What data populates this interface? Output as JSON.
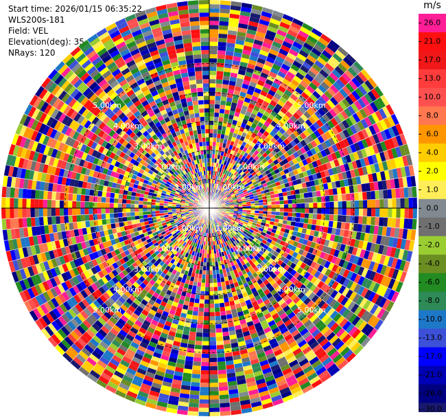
{
  "header": {
    "lines": [
      "Start time: 2026/01/15 06:35:22",
      "WLS200s-181",
      "Field: VEL",
      "Elevation(deg): 35.00",
      "NRays: 120"
    ]
  },
  "colorbar": {
    "unit": "m/s",
    "levels": [
      {
        "label": "26.0",
        "color": "#ff1e96"
      },
      {
        "label": "21.0",
        "color": "#ff1010"
      },
      {
        "label": "17.0",
        "color": "#f01818"
      },
      {
        "label": "13.0",
        "color": "#ff3c3c"
      },
      {
        "label": "10.0",
        "color": "#ff5050"
      },
      {
        "label": "8.0",
        "color": "#ff7850"
      },
      {
        "label": "6.0",
        "color": "#ff9600"
      },
      {
        "label": "4.0",
        "color": "#ffcc00"
      },
      {
        "label": "2.0",
        "color": "#ffff00"
      },
      {
        "label": "1.0",
        "color": "#ffee58"
      },
      {
        "label": "0.0",
        "color": "#808a90"
      },
      {
        "label": "-1.0",
        "color": "#707070"
      },
      {
        "label": "-2.0",
        "color": "#9acd32"
      },
      {
        "label": "-4.0",
        "color": "#6b8e23"
      },
      {
        "label": "-6.0",
        "color": "#228b22"
      },
      {
        "label": "-8.0",
        "color": "#2e8b57"
      },
      {
        "label": "-10.0",
        "color": "#1e78c8"
      },
      {
        "label": "-13.0",
        "color": "#3c50d8"
      },
      {
        "label": "-17.0",
        "color": "#0000ff"
      },
      {
        "label": "-21.0",
        "color": "#0000b4"
      },
      {
        "label": "-26.0",
        "color": "#000080"
      },
      {
        "label": "-30.0",
        "color": "#191970"
      }
    ]
  },
  "chart_data": {
    "type": "heatmap",
    "projection": "polar PPI",
    "field": "VEL",
    "nrays": 120,
    "elevation_deg": 35.0,
    "range_rings": [
      {
        "label": "1.00km",
        "value_km": 1.0
      },
      {
        "label": "2.00km",
        "value_km": 2.0
      },
      {
        "label": "3.00km",
        "value_km": 3.0
      },
      {
        "label": "4.00km",
        "value_km": 4.0
      },
      {
        "label": "5.00km",
        "value_km": 5.0
      }
    ],
    "max_range_km": 7.2,
    "colormap_colors": [
      "#ff1e96",
      "#ff1010",
      "#f01818",
      "#ff3c3c",
      "#ff5050",
      "#ff7850",
      "#ff9600",
      "#ffcc00",
      "#ffff00",
      "#ffee58",
      "#808a90",
      "#707070",
      "#9acd32",
      "#6b8e23",
      "#228b22",
      "#2e8b57",
      "#1e78c8",
      "#3c50d8",
      "#0000ff",
      "#0000b4",
      "#000080",
      "#191970"
    ],
    "field_pattern": "noise"
  }
}
